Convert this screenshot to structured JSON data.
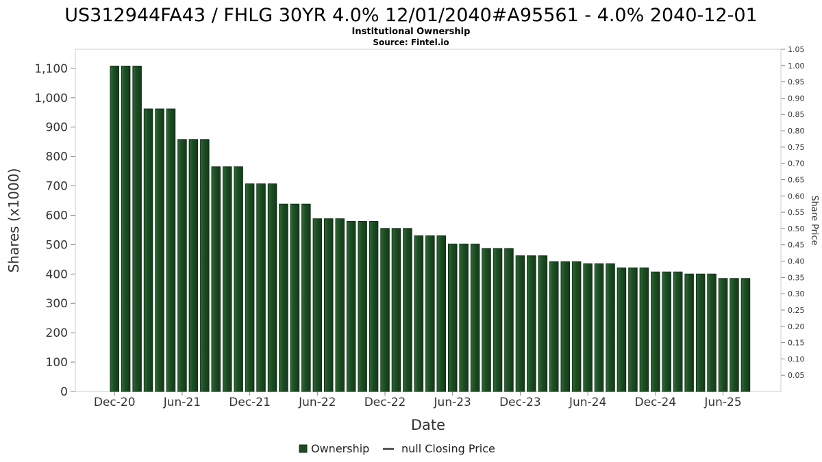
{
  "header": {
    "title": "US312944FA43 / FHLG 30YR 4.0% 12/01/2040#A95561 - 4.0% 2040-12-01",
    "subtitle": "Institutional Ownership",
    "source": "Source: Fintel.io"
  },
  "legend": {
    "ownership_label": "Ownership",
    "price_marker": "—",
    "price_label": "null Closing Price"
  },
  "chart_data": {
    "type": "bar",
    "title": "US312944FA43 / FHLG 30YR 4.0% 12/01/2040#A95561 - 4.0% 2040-12-01",
    "subtitle": "Institutional Ownership",
    "source": "Source: Fintel.io",
    "xlabel": "Date",
    "ylabel_left": "Shares (x1000)",
    "ylabel_right": "Share Price",
    "ylim_left": [
      0,
      1165
    ],
    "ylim_right": [
      0,
      1.05
    ],
    "grid": false,
    "legend_position": "bottom",
    "x_tick_every": 6,
    "x_tick_labels": [
      "Dec-20",
      "Jun-21",
      "Dec-21",
      "Jun-22",
      "Dec-22",
      "Jun-23",
      "Dec-23",
      "Jun-24",
      "Dec-24",
      "Jun-25"
    ],
    "left_ticks": [
      "0",
      "100",
      "200",
      "300",
      "400",
      "500",
      "600",
      "700",
      "800",
      "900",
      "1,000",
      "1,100"
    ],
    "right_ticks": [
      "0.05",
      "0.10",
      "0.15",
      "0.20",
      "0.25",
      "0.30",
      "0.35",
      "0.40",
      "0.45",
      "0.50",
      "0.55",
      "0.60",
      "0.65",
      "0.70",
      "0.75",
      "0.80",
      "0.85",
      "0.90",
      "0.95",
      "1.00",
      "1.05"
    ],
    "categories": [
      "Dec-20",
      "Jan-21",
      "Feb-21",
      "Mar-21",
      "Apr-21",
      "May-21",
      "Jun-21",
      "Jul-21",
      "Aug-21",
      "Sep-21",
      "Oct-21",
      "Nov-21",
      "Dec-21",
      "Jan-22",
      "Feb-22",
      "Mar-22",
      "Apr-22",
      "May-22",
      "Jun-22",
      "Jul-22",
      "Aug-22",
      "Sep-22",
      "Oct-22",
      "Nov-22",
      "Dec-22",
      "Jan-23",
      "Feb-23",
      "Mar-23",
      "Apr-23",
      "May-23",
      "Jun-23",
      "Jul-23",
      "Aug-23",
      "Sep-23",
      "Oct-23",
      "Nov-23",
      "Dec-23",
      "Jan-24",
      "Feb-24",
      "Mar-24",
      "Apr-24",
      "May-24",
      "Jun-24",
      "Jul-24",
      "Aug-24",
      "Sep-24",
      "Oct-24",
      "Nov-24",
      "Dec-24",
      "Jan-25",
      "Feb-25",
      "Mar-25",
      "Apr-25",
      "May-25",
      "Jun-25",
      "Jul-25",
      "Aug-25"
    ],
    "series": [
      {
        "name": "Ownership",
        "values": [
          1108,
          1108,
          1108,
          962,
          962,
          962,
          858,
          858,
          858,
          765,
          765,
          765,
          707,
          707,
          707,
          638,
          638,
          638,
          588,
          588,
          588,
          579,
          579,
          579,
          555,
          555,
          555,
          530,
          530,
          530,
          502,
          502,
          502,
          487,
          487,
          487,
          462,
          462,
          462,
          442,
          442,
          442,
          435,
          435,
          435,
          421,
          421,
          421,
          407,
          407,
          407,
          400,
          400,
          400,
          385,
          385,
          385
        ]
      }
    ],
    "colors": {
      "bar": "#1d4c24",
      "bar_light": "#2e6a36",
      "bar_dark": "#133a18",
      "bar_stroke": "#0f3114",
      "axis": "#888888",
      "border": "#cccccc",
      "text": "#333333"
    }
  }
}
